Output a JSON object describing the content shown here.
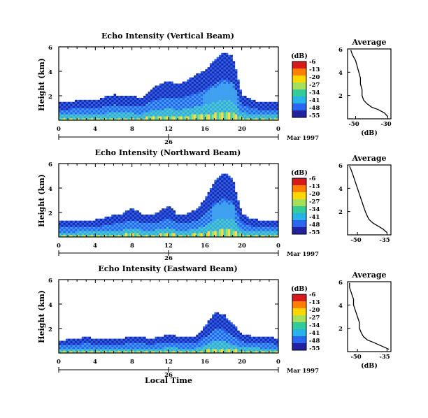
{
  "figure": {
    "xlabel": "Local Time",
    "date_label": "Mar 1997",
    "colorbar_unit": "(dB)",
    "colorbar_ticks": [
      "-6",
      "-13",
      "-20",
      "-27",
      "-34",
      "-41",
      "-48",
      "-55"
    ],
    "colorbar_colors": [
      "#d7191c",
      "#ff7f00",
      "#ffd700",
      "#a6e05a",
      "#33cc99",
      "#28b4e6",
      "#2b66f0",
      "#2222a0"
    ],
    "panel_colors": [
      "#1a2aa8",
      "#2b60ee",
      "#3fa0f0",
      "#41d0c0",
      "#9ee26a",
      "#ffd84a",
      "#ff7f1a",
      "#e01818"
    ]
  },
  "chart_data": [
    {
      "type": "heatmap",
      "title": "Echo Intensity (Vertical Beam)",
      "ylabel": "Height (km)",
      "xlim": [
        0,
        24
      ],
      "ylim": [
        0,
        6
      ],
      "xticks": [
        "0",
        "4",
        "8",
        "12",
        "16",
        "20",
        "0"
      ],
      "yticks": [
        "2",
        "4",
        "6"
      ],
      "day_label": "26",
      "colorbar_range_db": [
        -55,
        -6
      ],
      "echo_top_km": [
        1.5,
        1.5,
        1.6,
        1.7,
        1.6,
        1.9,
        2.1,
        2.0,
        2.0,
        1.8,
        2.5,
        2.9,
        3.2,
        2.9,
        3.3,
        3.7,
        4.1,
        4.9,
        5.6,
        5.3,
        2.1,
        1.7,
        1.5,
        1.5,
        1.5
      ],
      "average_profile": {
        "title": "Average",
        "xlabel": "(dB)",
        "xlim": [
          -55,
          -28
        ],
        "ylim": [
          0,
          6
        ],
        "xticks": [
          "-50",
          "-30"
        ],
        "yticks": [
          "2",
          "4",
          "6"
        ],
        "height_km": [
          0.2,
          0.5,
          0.8,
          1.0,
          1.3,
          1.6,
          2.0,
          2.5,
          3.0,
          3.5,
          4.0,
          4.5,
          5.0,
          5.5,
          5.9
        ],
        "echo_db": [
          -30,
          -32,
          -36,
          -40,
          -43,
          -45,
          -46,
          -46,
          -47,
          -47,
          -48,
          -49,
          -50,
          -52,
          -53
        ]
      }
    },
    {
      "type": "heatmap",
      "title": "Echo Intensity (Northward Beam)",
      "ylabel": "Height (km)",
      "xlim": [
        0,
        24
      ],
      "ylim": [
        0,
        6
      ],
      "xticks": [
        "0",
        "4",
        "8",
        "12",
        "16",
        "20",
        "0"
      ],
      "yticks": [
        "2",
        "4",
        "6"
      ],
      "day_label": "26",
      "colorbar_range_db": [
        -55,
        -6
      ],
      "echo_top_km": [
        1.3,
        1.3,
        1.4,
        1.4,
        1.4,
        1.6,
        1.8,
        1.9,
        2.4,
        1.9,
        1.8,
        2.1,
        2.6,
        1.8,
        1.9,
        2.2,
        3.1,
        4.5,
        5.3,
        4.8,
        1.9,
        1.5,
        1.4,
        1.4,
        1.4
      ],
      "average_profile": {
        "title": "Average",
        "xlabel": "",
        "xlim": [
          -55,
          -33
        ],
        "ylim": [
          0,
          6
        ],
        "xticks": [
          "-50",
          "-35"
        ],
        "yticks": [
          "2",
          "4",
          "6"
        ],
        "height_km": [
          0.2,
          0.5,
          0.8,
          1.0,
          1.3,
          1.6,
          2.0,
          2.5,
          3.0,
          3.5,
          4.0,
          4.5,
          5.0,
          5.5,
          5.9
        ],
        "echo_db": [
          -35,
          -37,
          -40,
          -42,
          -44,
          -45,
          -46,
          -47,
          -48,
          -49,
          -50,
          -51,
          -52,
          -53,
          -54
        ]
      }
    },
    {
      "type": "heatmap",
      "title": "Echo Intensity (Eastward Beam)",
      "ylabel": "Height (km)",
      "xlim": [
        0,
        24
      ],
      "ylim": [
        0,
        6
      ],
      "xticks": [
        "0",
        "4",
        "8",
        "12",
        "16",
        "20",
        "0"
      ],
      "yticks": [
        "2",
        "4",
        "6"
      ],
      "day_label": "26",
      "colorbar_range_db": [
        -55,
        -6
      ],
      "echo_top_km": [
        1.0,
        1.1,
        1.2,
        1.3,
        1.2,
        1.1,
        1.1,
        1.2,
        1.4,
        1.3,
        1.2,
        1.3,
        1.5,
        1.4,
        1.3,
        1.4,
        2.2,
        3.3,
        3.2,
        2.4,
        1.6,
        1.4,
        1.4,
        1.3,
        1.2
      ],
      "average_profile": {
        "title": "Average",
        "xlabel": "(dB)",
        "xlim": [
          -55,
          -33
        ],
        "ylim": [
          0,
          6
        ],
        "xticks": [
          "-50",
          "-35"
        ],
        "yticks": [
          "2",
          "4",
          "6"
        ],
        "height_km": [
          0.2,
          0.5,
          0.8,
          1.0,
          1.3,
          1.6,
          2.0,
          2.5,
          3.0,
          3.5,
          4.0,
          4.5,
          5.0,
          5.5,
          5.9
        ],
        "echo_db": [
          -34,
          -38,
          -42,
          -45,
          -47,
          -48,
          -49,
          -49,
          -50,
          -51,
          -52,
          -52,
          -53,
          -54,
          -54
        ]
      }
    }
  ]
}
